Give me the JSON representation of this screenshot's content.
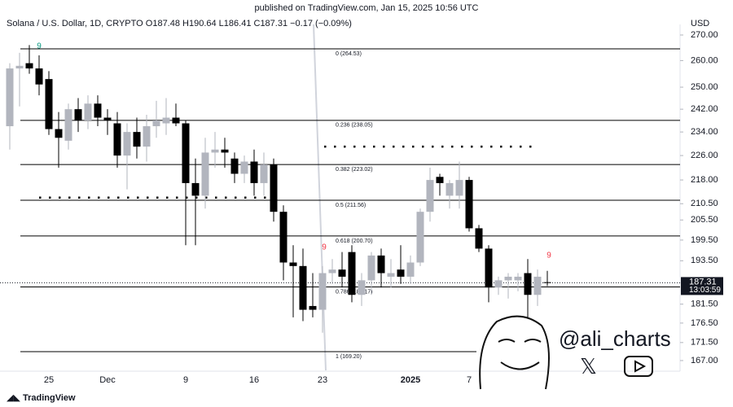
{
  "header": "published on TradingView.com, Jan 15, 2025 10:56 UTC",
  "footer": "TradingView",
  "watermark": "@ali_charts",
  "chart_data": {
    "type": "candlestick",
    "title": "Solana / U.S. Dollar, 1D, CRYPTO  O187.48  H190.64  L186.41  C187.31  −0.17 (−0.09%)",
    "currency": "USD",
    "log_scale": true,
    "up_color": "#b2b5be",
    "down_color": "#000000",
    "categories": [
      null,
      null,
      null,
      null,
      "25",
      null,
      null,
      null,
      null,
      null,
      "Dec",
      null,
      null,
      null,
      null,
      null,
      null,
      null,
      "9",
      null,
      null,
      null,
      null,
      null,
      null,
      "16",
      null,
      null,
      null,
      null,
      null,
      null,
      "23",
      null,
      null,
      null,
      null,
      null,
      null,
      null,
      null,
      "2025",
      null,
      null,
      null,
      null,
      null,
      "7",
      null,
      null,
      null,
      null,
      null,
      null,
      null,
      null
    ],
    "open": [
      236,
      257,
      259,
      257,
      253,
      235,
      231,
      242,
      238,
      244,
      239,
      237,
      226,
      234,
      229,
      236,
      237,
      239,
      237,
      217,
      213,
      227,
      228,
      225,
      220,
      224,
      217,
      223,
      208,
      193,
      192,
      181,
      180,
      190,
      191,
      196,
      184,
      188,
      195,
      189,
      191,
      189,
      193,
      208,
      219,
      213,
      213,
      218,
      203,
      197,
      186,
      188,
      188,
      190,
      184,
      187.48
    ],
    "high": [
      259,
      263,
      266,
      262,
      256,
      241,
      244,
      246,
      247,
      247,
      242,
      241,
      237,
      239,
      240,
      245,
      246,
      244,
      238,
      225,
      232,
      234,
      232,
      227,
      226,
      228,
      227,
      225,
      210,
      198,
      197,
      190,
      192,
      194,
      196,
      198,
      190,
      196,
      197,
      194,
      198,
      195,
      209,
      222,
      220,
      218,
      224,
      219,
      204,
      198,
      189,
      190,
      190,
      194,
      191,
      190.64
    ],
    "low": [
      228,
      243,
      255,
      247,
      233,
      222,
      228,
      234,
      235,
      236,
      233,
      222,
      215,
      225,
      224,
      232,
      233,
      236,
      198,
      198,
      209,
      222,
      222,
      217,
      217,
      213,
      213,
      205,
      188,
      178,
      177,
      178,
      174,
      187,
      186,
      182,
      181,
      184,
      186,
      186,
      187,
      187,
      192,
      205,
      213,
      209,
      209,
      202,
      196,
      182,
      184,
      183,
      185,
      178,
      181,
      186.41
    ],
    "close": [
      257,
      258,
      257,
      251,
      235,
      232,
      242,
      238,
      244,
      239,
      238,
      226,
      234,
      229,
      236,
      238,
      239,
      237,
      217,
      213,
      227,
      228,
      227,
      220,
      224,
      217,
      223,
      208,
      193,
      192,
      180,
      180,
      190,
      191,
      189,
      184,
      188,
      195,
      190,
      190,
      189,
      193,
      208,
      218,
      217,
      217,
      218,
      203,
      197,
      186,
      188,
      189,
      189,
      184,
      189,
      187.31
    ],
    "last_price": 187.31,
    "countdown": "13:03:59",
    "levels": [
      {
        "label": "0 (264.53)",
        "value": 264.53
      },
      {
        "label": "0.236 (238.05)",
        "value": 238.05
      },
      {
        "label": "0.382 (223.02)",
        "value": 223.02
      },
      {
        "label": "0.5 (211.56)",
        "value": 211.56
      },
      {
        "label": "0.618 (200.70)",
        "value": 200.7
      },
      {
        "label": "0.786 (186.17)",
        "value": 186.17
      },
      {
        "label": "1 (169.20)",
        "value": 169.2
      }
    ],
    "dotted_levels": [
      212.4,
      229.0
    ],
    "annotations": [
      {
        "text": "9",
        "color": "#089981"
      },
      {
        "text": "9",
        "color": "#f23645"
      },
      {
        "text": "9",
        "color": "#f23645"
      }
    ],
    "ylim": [
      164.6,
      274.25
    ],
    "yticks": [
      {
        "value": 270,
        "label": "270.00"
      },
      {
        "value": 260,
        "label": "260.00"
      },
      {
        "value": 250,
        "label": "250.00"
      },
      {
        "value": 242,
        "label": "242.00"
      },
      {
        "value": 234,
        "label": "234.00"
      },
      {
        "value": 226,
        "label": "226.00"
      },
      {
        "value": 218,
        "label": "218.00"
      },
      {
        "value": 210.5,
        "label": "210.50"
      },
      {
        "value": 205.5,
        "label": "205.50"
      },
      {
        "value": 199.5,
        "label": "199.50"
      },
      {
        "value": 193.5,
        "label": "193.50"
      },
      {
        "value": 181.5,
        "label": "181.50"
      },
      {
        "value": 176.5,
        "label": "176.50"
      },
      {
        "value": 171.5,
        "label": "171.50"
      },
      {
        "value": 167,
        "label": "167.00"
      }
    ]
  }
}
